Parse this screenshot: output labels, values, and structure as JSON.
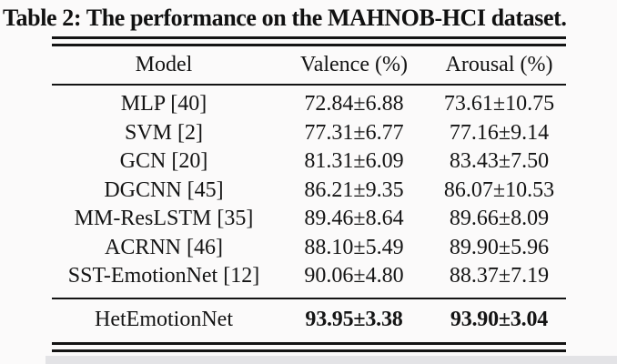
{
  "caption": "Table 2: The performance on the MAHNOB-HCI dataset.",
  "table": {
    "columns": [
      "Model",
      "Valence (%)",
      "Arousal (%)"
    ],
    "rows": [
      {
        "model": "MLP [40]",
        "valence": "72.84±6.88",
        "arousal": "73.61±10.75"
      },
      {
        "model": "SVM [2]",
        "valence": "77.31±6.77",
        "arousal": "77.16±9.14"
      },
      {
        "model": "GCN [20]",
        "valence": "81.31±6.09",
        "arousal": "83.43±7.50"
      },
      {
        "model": "DGCNN [45]",
        "valence": "86.21±9.35",
        "arousal": "86.07±10.53"
      },
      {
        "model": "MM-ResLSTM [35]",
        "valence": "89.46±8.64",
        "arousal": "89.66±8.09"
      },
      {
        "model": "ACRNN [46]",
        "valence": "88.10±5.49",
        "arousal": "89.90±5.96"
      },
      {
        "model": "SST-EmotionNet [12]",
        "valence": "90.06±4.80",
        "arousal": "88.37±7.19"
      }
    ],
    "highlight_row": {
      "model": "HetEmotionNet",
      "valence": "93.95±3.38",
      "arousal": "93.90±3.04"
    }
  },
  "colors": {
    "text": "#141414",
    "rule": "#141414",
    "background": "#fbfafa",
    "scan_band": "#e3e3e6"
  }
}
